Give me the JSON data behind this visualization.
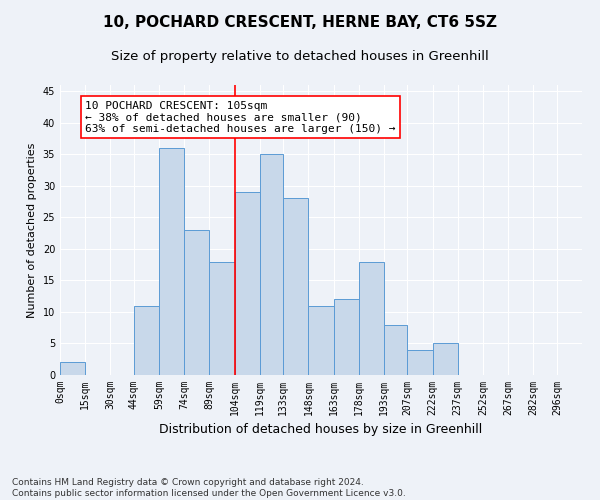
{
  "title": "10, POCHARD CRESCENT, HERNE BAY, CT6 5SZ",
  "subtitle": "Size of property relative to detached houses in Greenhill",
  "xlabel": "Distribution of detached houses by size in Greenhill",
  "ylabel": "Number of detached properties",
  "bar_labels": [
    "0sqm",
    "15sqm",
    "30sqm",
    "44sqm",
    "59sqm",
    "74sqm",
    "89sqm",
    "104sqm",
    "119sqm",
    "133sqm",
    "148sqm",
    "163sqm",
    "178sqm",
    "193sqm",
    "207sqm",
    "222sqm",
    "237sqm",
    "252sqm",
    "267sqm",
    "282sqm",
    "296sqm"
  ],
  "bar_values": [
    2,
    0,
    0,
    11,
    36,
    23,
    18,
    29,
    35,
    28,
    11,
    12,
    18,
    8,
    4,
    5,
    0,
    0,
    0,
    0,
    0
  ],
  "bar_color": "#c8d8ea",
  "bar_edge_color": "#5b9bd5",
  "bin_edges": [
    0,
    15,
    30,
    44,
    59,
    74,
    89,
    104,
    119,
    133,
    148,
    163,
    178,
    193,
    207,
    222,
    237,
    252,
    267,
    282,
    296,
    311
  ],
  "ylim": [
    0,
    46
  ],
  "yticks": [
    0,
    5,
    10,
    15,
    20,
    25,
    30,
    35,
    40,
    45
  ],
  "annotation_text": "10 POCHARD CRESCENT: 105sqm\n← 38% of detached houses are smaller (90)\n63% of semi-detached houses are larger (150) →",
  "annotation_box_color": "white",
  "annotation_box_edge_color": "red",
  "vline_color": "red",
  "vline_x": 104,
  "footnote": "Contains HM Land Registry data © Crown copyright and database right 2024.\nContains public sector information licensed under the Open Government Licence v3.0.",
  "background_color": "#eef2f8",
  "grid_color": "white",
  "title_fontsize": 11,
  "subtitle_fontsize": 9.5,
  "xlabel_fontsize": 9,
  "ylabel_fontsize": 8,
  "tick_fontsize": 7,
  "annotation_fontsize": 8,
  "footnote_fontsize": 6.5
}
